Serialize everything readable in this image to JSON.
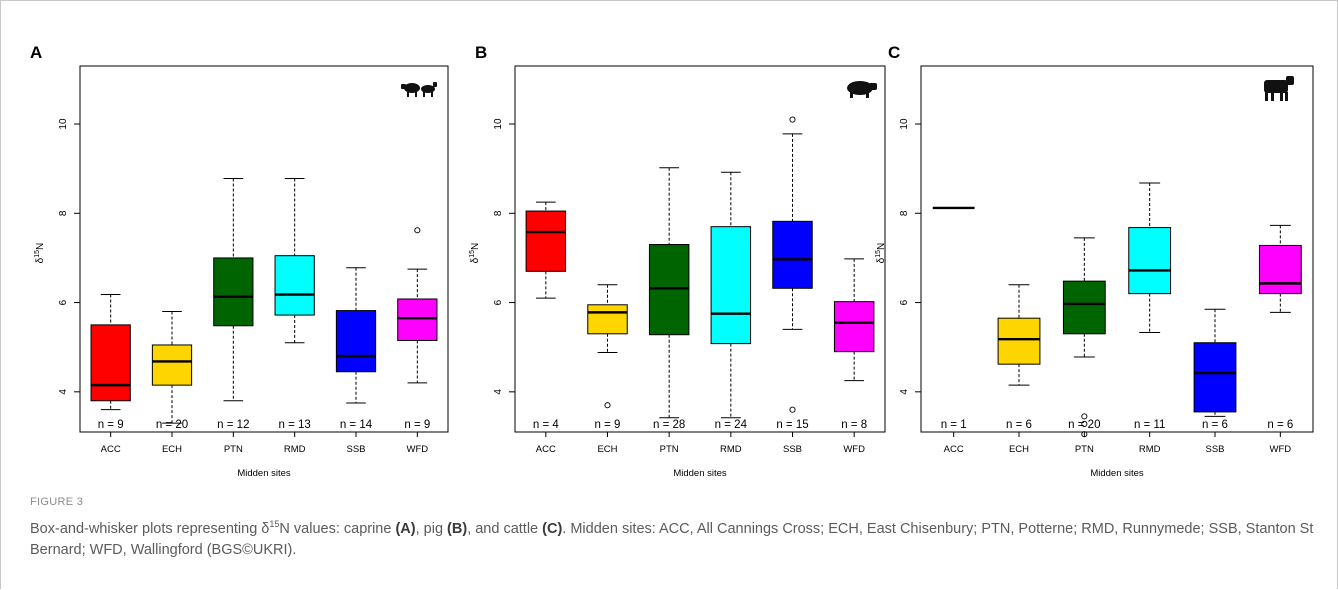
{
  "figure_label": "FIGURE 3",
  "caption": {
    "lead": "Box-and-whisker plots representing δ",
    "sup": "15",
    "after_sup": "N values: caprine ",
    "a_ref": "(A)",
    "mid1": ", pig ",
    "b_ref": "(B)",
    "mid2": ", and cattle ",
    "c_ref": "(C)",
    "rest": ". Midden sites: ACC, All Cannings Cross; ECH, East Chisenbury; PTN, Potterne; RMD, Runnymede; SSB, Stanton St Bernard; WFD, Wallingford (BGS©UKRI)."
  },
  "colors": {
    "ACC": "#ff0000",
    "ECH": "#ffd500",
    "PTN": "#006400",
    "RMD": "#00ffff",
    "SSB": "#0000ff",
    "WFD": "#ff00ff"
  },
  "chart_data": [
    {
      "type": "box",
      "panel": "A",
      "icon": "goat-sheep-icon",
      "ylabel_base": "δ",
      "ylabel_sup": "15",
      "ylabel_tail": "N",
      "xlabel": "Midden sites",
      "ylim": [
        3.1,
        11.3
      ],
      "yticks": [
        "4",
        "6",
        "8",
        "10"
      ],
      "categories": [
        "ACC",
        "ECH",
        "PTN",
        "RMD",
        "SSB",
        "WFD"
      ],
      "n_labels": [
        "n = 9",
        "n = 20",
        "n = 12",
        "n = 13",
        "n = 14",
        "n = 9"
      ],
      "boxes": [
        {
          "whisker_low": 3.6,
          "q1": 3.8,
          "median": 4.15,
          "q3": 5.5,
          "whisker_high": 6.18,
          "outliers": []
        },
        {
          "whisker_low": 3.3,
          "q1": 4.15,
          "median": 4.68,
          "q3": 5.05,
          "whisker_high": 5.8,
          "outliers": []
        },
        {
          "whisker_low": 3.8,
          "q1": 5.48,
          "median": 6.13,
          "q3": 7.0,
          "whisker_high": 8.78,
          "outliers": []
        },
        {
          "whisker_low": 5.1,
          "q1": 5.72,
          "median": 6.18,
          "q3": 7.05,
          "whisker_high": 8.78,
          "outliers": []
        },
        {
          "whisker_low": 3.75,
          "q1": 4.45,
          "median": 4.8,
          "q3": 5.82,
          "whisker_high": 6.78,
          "outliers": []
        },
        {
          "whisker_low": 4.2,
          "q1": 5.15,
          "median": 5.65,
          "q3": 6.08,
          "whisker_high": 6.75,
          "outliers": [
            7.62
          ]
        }
      ]
    },
    {
      "type": "box",
      "panel": "B",
      "icon": "pig-icon",
      "ylabel_base": "δ",
      "ylabel_sup": "15",
      "ylabel_tail": "N",
      "xlabel": "Midden sites",
      "ylim": [
        3.1,
        11.3
      ],
      "yticks": [
        "4",
        "6",
        "8",
        "10"
      ],
      "categories": [
        "ACC",
        "ECH",
        "PTN",
        "RMD",
        "SSB",
        "WFD"
      ],
      "n_labels": [
        "n = 4",
        "n = 9",
        "n = 28",
        "n = 24",
        "n = 15",
        "n = 8"
      ],
      "boxes": [
        {
          "whisker_low": 6.1,
          "q1": 6.7,
          "median": 7.58,
          "q3": 8.05,
          "whisker_high": 8.25,
          "outliers": []
        },
        {
          "whisker_low": 4.88,
          "q1": 5.3,
          "median": 5.78,
          "q3": 5.95,
          "whisker_high": 6.4,
          "outliers": [
            3.7
          ]
        },
        {
          "whisker_low": 3.42,
          "q1": 5.28,
          "median": 6.32,
          "q3": 7.3,
          "whisker_high": 9.02,
          "outliers": []
        },
        {
          "whisker_low": 3.42,
          "q1": 5.08,
          "median": 5.75,
          "q3": 7.7,
          "whisker_high": 8.92,
          "outliers": []
        },
        {
          "whisker_low": 5.4,
          "q1": 6.32,
          "median": 6.97,
          "q3": 7.82,
          "whisker_high": 9.78,
          "outliers": [
            10.1,
            3.6
          ]
        },
        {
          "whisker_low": 4.25,
          "q1": 4.9,
          "median": 5.55,
          "q3": 6.02,
          "whisker_high": 6.98,
          "outliers": []
        }
      ]
    },
    {
      "type": "box",
      "panel": "C",
      "icon": "cow-icon",
      "ylabel_base": "δ",
      "ylabel_sup": "15",
      "ylabel_tail": "N",
      "xlabel": "Midden sites",
      "ylim": [
        3.1,
        11.3
      ],
      "yticks": [
        "4",
        "6",
        "8",
        "10"
      ],
      "categories": [
        "ACC",
        "ECH",
        "PTN",
        "RMD",
        "SSB",
        "WFD"
      ],
      "n_labels": [
        "n = 1",
        "n = 6",
        "n = 20",
        "n = 11",
        "n = 6",
        "n = 6"
      ],
      "boxes": [
        {
          "whisker_low": 8.12,
          "q1": 8.12,
          "median": 8.12,
          "q3": 8.12,
          "whisker_high": 8.12,
          "outliers": []
        },
        {
          "whisker_low": 4.15,
          "q1": 4.62,
          "median": 5.18,
          "q3": 5.65,
          "whisker_high": 6.4,
          "outliers": []
        },
        {
          "whisker_low": 4.78,
          "q1": 5.3,
          "median": 5.97,
          "q3": 6.48,
          "whisker_high": 7.45,
          "outliers": [
            3.45,
            3.28,
            3.05
          ]
        },
        {
          "whisker_low": 5.33,
          "q1": 6.2,
          "median": 6.72,
          "q3": 7.68,
          "whisker_high": 8.68,
          "outliers": []
        },
        {
          "whisker_low": 3.45,
          "q1": 3.55,
          "median": 4.42,
          "q3": 5.1,
          "whisker_high": 5.85,
          "outliers": []
        },
        {
          "whisker_low": 5.78,
          "q1": 6.2,
          "median": 6.43,
          "q3": 7.28,
          "whisker_high": 7.73,
          "outliers": []
        }
      ]
    }
  ]
}
